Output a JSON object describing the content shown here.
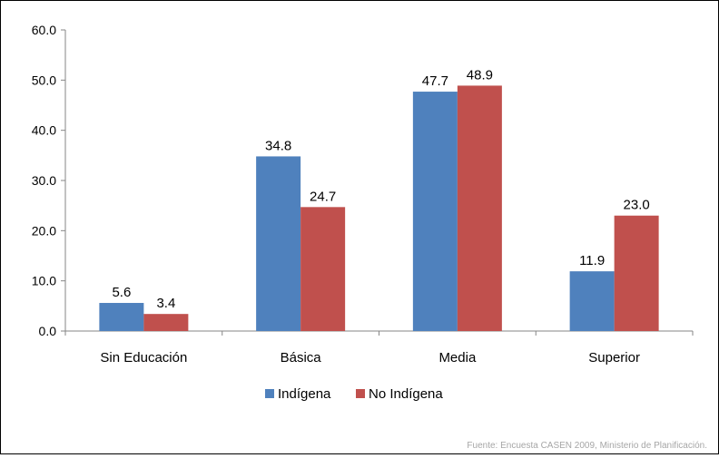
{
  "chart_data": {
    "type": "bar",
    "categories": [
      "Sin Educación",
      "Básica",
      "Media",
      "Superior"
    ],
    "series": [
      {
        "name": "Indígena",
        "values": [
          5.6,
          34.8,
          47.7,
          11.9
        ],
        "color": "#4f81bd"
      },
      {
        "name": "No Indígena",
        "values": [
          3.4,
          24.7,
          48.9,
          23.0
        ],
        "color": "#c0504d"
      }
    ],
    "ylim": [
      0,
      60
    ],
    "yticks": [
      "0.0",
      "10.0",
      "20.0",
      "30.0",
      "40.0",
      "50.0",
      "60.0"
    ],
    "grid": false,
    "legend": "bottom-center",
    "source": "Fuente: Encuesta CASEN 2009, Ministerio de Planificación."
  }
}
